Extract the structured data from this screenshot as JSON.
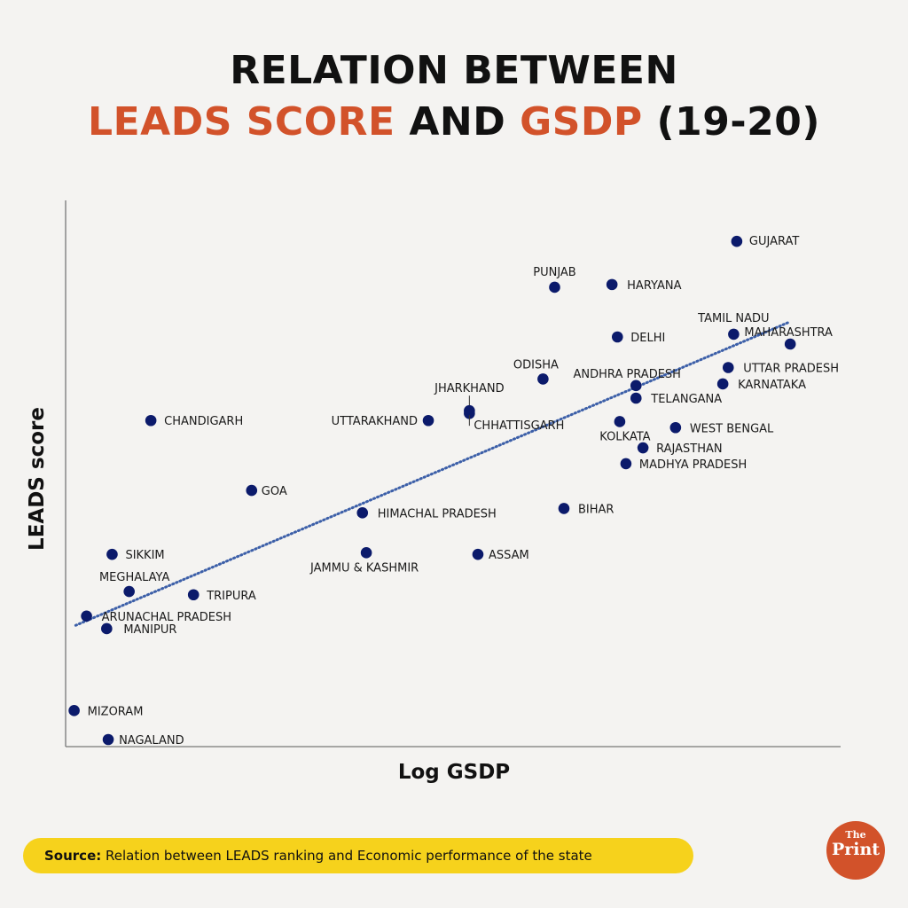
{
  "title": {
    "line1": "RELATION BETWEEN",
    "line2_part1": "LEADS SCORE",
    "line2_part2": " AND ",
    "line2_part3": "GSDP",
    "line2_part4": " (19-20)"
  },
  "colors": {
    "accent": "#d2522a",
    "point": "#0b1a6b",
    "trend": "#3c5fa8",
    "source_bg": "#f6d21c"
  },
  "source": {
    "label": "Source:",
    "text": " Relation between LEADS ranking and Economic performance of the state"
  },
  "logo": {
    "the": "The",
    "print": "Print"
  },
  "chart_data": {
    "type": "scatter",
    "title": "RELATION BETWEEN LEADS SCORE AND GSDP (19-20)",
    "xlabel": "Log GSDP",
    "ylabel": "LEADS score",
    "xlim": [
      0,
      100
    ],
    "ylim": [
      0,
      100
    ],
    "grid": false,
    "units_note": "relative positions (no axis ticks shown)",
    "trendline": {
      "style": "dotted",
      "from": [
        1.3,
        22.2
      ],
      "to": [
        93.5,
        77.8
      ]
    },
    "points": [
      {
        "name": "GUJARAT",
        "x": 86.6,
        "y": 92.5
      },
      {
        "name": "PUNJAB",
        "x": 63.1,
        "y": 84.1
      },
      {
        "name": "HARYANA",
        "x": 70.5,
        "y": 84.6
      },
      {
        "name": "TAMIL NADU",
        "x": 86.2,
        "y": 75.5
      },
      {
        "name": "MAHARASHTRA",
        "x": 93.5,
        "y": 73.7
      },
      {
        "name": "DELHI",
        "x": 71.2,
        "y": 75.0
      },
      {
        "name": "UTTAR PRADESH",
        "x": 85.5,
        "y": 69.4
      },
      {
        "name": "ODISHA",
        "x": 61.6,
        "y": 67.3
      },
      {
        "name": "KARNATAKA",
        "x": 84.8,
        "y": 66.4
      },
      {
        "name": "ANDHRA PRADESH",
        "x": 73.6,
        "y": 66.1
      },
      {
        "name": "TELANGANA",
        "x": 73.6,
        "y": 63.8
      },
      {
        "name": "JHARKHAND",
        "x": 52.1,
        "y": 61.5
      },
      {
        "name": "CHHATTISGARH",
        "x": 52.1,
        "y": 61.0
      },
      {
        "name": "UTTARAKHAND",
        "x": 46.8,
        "y": 59.7
      },
      {
        "name": "CHANDIGARH",
        "x": 11.0,
        "y": 59.7
      },
      {
        "name": "KOLKATA",
        "x": 71.5,
        "y": 59.5
      },
      {
        "name": "WEST BENGAL",
        "x": 78.7,
        "y": 58.4
      },
      {
        "name": "RAJASTHAN",
        "x": 74.5,
        "y": 54.7
      },
      {
        "name": "MADHYA PRADESH",
        "x": 72.3,
        "y": 51.8
      },
      {
        "name": "GOA",
        "x": 24.0,
        "y": 46.9
      },
      {
        "name": "BIHAR",
        "x": 64.3,
        "y": 43.6
      },
      {
        "name": "HIMACHAL PRADESH",
        "x": 38.3,
        "y": 42.8
      },
      {
        "name": "SIKKIM",
        "x": 6.0,
        "y": 35.2
      },
      {
        "name": "JAMMU & KASHMIR",
        "x": 38.8,
        "y": 35.5
      },
      {
        "name": "ASSAM",
        "x": 53.2,
        "y": 35.2
      },
      {
        "name": "MEGHALAYA",
        "x": 8.2,
        "y": 28.4
      },
      {
        "name": "TRIPURA",
        "x": 16.5,
        "y": 27.8
      },
      {
        "name": "ARUNACHAL PRADESH",
        "x": 2.7,
        "y": 23.9
      },
      {
        "name": "MANIPUR",
        "x": 5.3,
        "y": 21.6
      },
      {
        "name": "MIZORAM",
        "x": 1.1,
        "y": 6.6
      },
      {
        "name": "NAGALAND",
        "x": 5.5,
        "y": 1.3
      }
    ]
  }
}
